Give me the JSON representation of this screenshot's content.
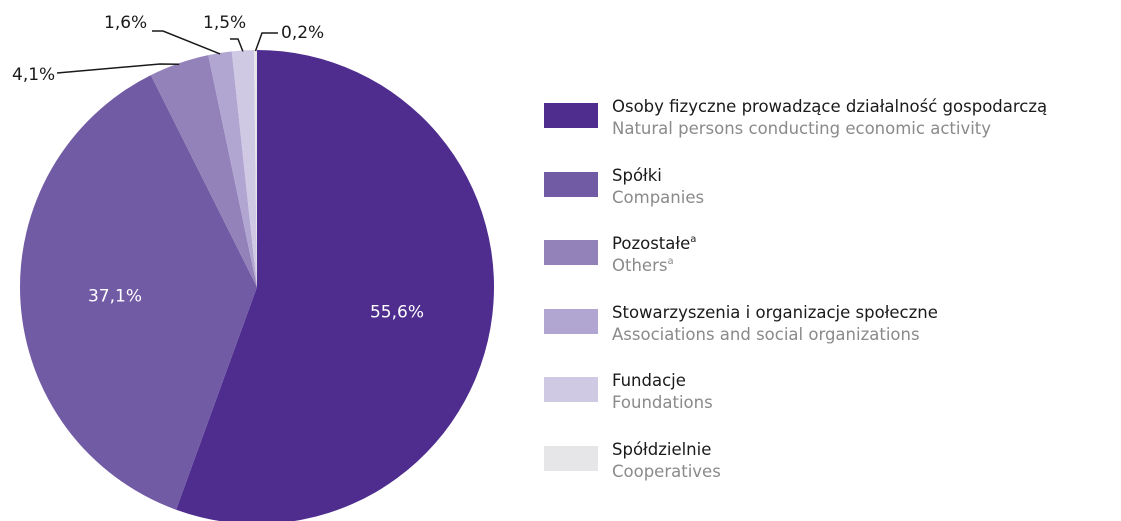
{
  "chart_data": {
    "type": "pie",
    "slices": [
      {
        "label_pl": "Osoby fizyczne prowadzące działalność gospodarczą",
        "label_en": "Natural persons conducting economic activity",
        "value": 55.6,
        "value_label": "55,6%",
        "color": "#4f2d8f",
        "note": ""
      },
      {
        "label_pl": "Spółki",
        "label_en": "Companies",
        "value": 37.1,
        "value_label": "37,1%",
        "color": "#725ba5",
        "note": ""
      },
      {
        "label_pl": "Pozostałe",
        "label_en": "Others",
        "value": 4.1,
        "value_label": "4,1%",
        "color": "#9382ba",
        "note": "a"
      },
      {
        "label_pl": "Stowarzyszenia i organizacje społeczne",
        "label_en": "Associations and social organizations",
        "value": 1.6,
        "value_label": "1,6%",
        "color": "#b1a6d1",
        "note": ""
      },
      {
        "label_pl": "Fundacje",
        "label_en": "Foundations",
        "value": 1.5,
        "value_label": "1,5%",
        "color": "#d0c9e3",
        "note": ""
      },
      {
        "label_pl": "Spółdzielnie",
        "label_en": "Cooperatives",
        "value": 0.2,
        "value_label": "0,2%",
        "color": "#e6e6e8",
        "note": ""
      }
    ],
    "start_angle_deg": 0,
    "direction": "clockwise",
    "legend_position": "right"
  }
}
